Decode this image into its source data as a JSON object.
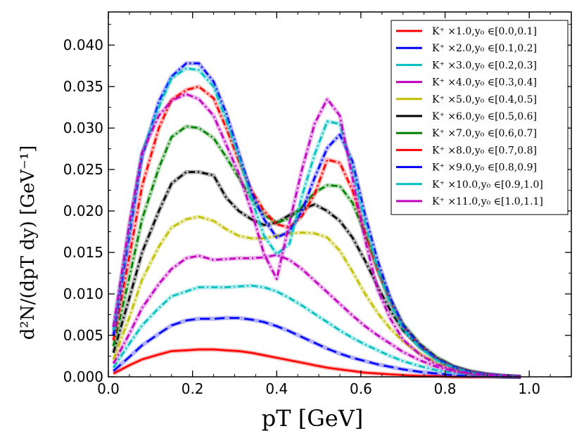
{
  "chart_data": {
    "type": "line",
    "title": "",
    "xlabel": "pT [GeV]",
    "ylabel": "d²N/(dpT dy) [GeV⁻¹]",
    "xlim": [
      0.0,
      1.1
    ],
    "ylim": [
      0.0,
      0.044
    ],
    "x_ticks": [
      "0.0",
      "0.2",
      "0.4",
      "0.6",
      "0.8",
      "1.0"
    ],
    "y_ticks": [
      "0.000",
      "0.005",
      "0.010",
      "0.015",
      "0.020",
      "0.025",
      "0.030",
      "0.035",
      "0.040"
    ],
    "legend_position": "top-right",
    "x": [
      0.012,
      0.05,
      0.08,
      0.12,
      0.15,
      0.185,
      0.215,
      0.25,
      0.28,
      0.31,
      0.34,
      0.37,
      0.4,
      0.43,
      0.46,
      0.49,
      0.52,
      0.55,
      0.58,
      0.61,
      0.64,
      0.67,
      0.7,
      0.74,
      0.78,
      0.82,
      0.86,
      0.9,
      0.94,
      0.98
    ],
    "series": [
      {
        "name": "K⁺ ×1.0,y₀ ∈[0.0,0.1]",
        "color": "#ff0000",
        "dash": "solid",
        "values": [
          0.0004,
          0.0014,
          0.0021,
          0.0027,
          0.0031,
          0.0032,
          0.0033,
          0.0033,
          0.0032,
          0.0031,
          0.0029,
          0.0026,
          0.0023,
          0.002,
          0.0017,
          0.0014,
          0.0011,
          0.0009,
          0.0007,
          0.0005,
          0.0004,
          0.0003,
          0.0002,
          0.0001,
          0.0001,
          0.0,
          0.0,
          0.0,
          0.0,
          0.0
        ]
      },
      {
        "name": "K⁺ ×2.0,y₀ ∈[0.1,0.2]",
        "color": "#0000ff",
        "dash": "dash",
        "values": [
          0.0007,
          0.0024,
          0.0038,
          0.0052,
          0.0062,
          0.0068,
          0.007,
          0.007,
          0.0071,
          0.0071,
          0.0069,
          0.0066,
          0.0061,
          0.0055,
          0.0048,
          0.0041,
          0.0034,
          0.0028,
          0.0023,
          0.0019,
          0.0015,
          0.0012,
          0.0009,
          0.0006,
          0.0004,
          0.0002,
          0.0001,
          0.0001,
          0.0,
          0.0
        ]
      },
      {
        "name": "K⁺ ×3.0,y₀ ∈[0.2,0.3]",
        "color": "#00bfbf",
        "dash": "dashdot",
        "values": [
          0.0011,
          0.004,
          0.0062,
          0.0083,
          0.0097,
          0.0103,
          0.0108,
          0.0108,
          0.0108,
          0.0109,
          0.011,
          0.0108,
          0.0103,
          0.0095,
          0.0086,
          0.0076,
          0.0066,
          0.0056,
          0.0047,
          0.0039,
          0.0032,
          0.0025,
          0.0019,
          0.0013,
          0.0008,
          0.0005,
          0.0003,
          0.0001,
          0.0,
          0.0
        ]
      },
      {
        "name": "K⁺ ×4.0,y₀ ∈[0.3,0.4]",
        "color": "#bf00bf",
        "dash": "dashdot",
        "values": [
          0.0016,
          0.0052,
          0.0083,
          0.0112,
          0.013,
          0.0143,
          0.0146,
          0.0141,
          0.0142,
          0.0143,
          0.0143,
          0.0144,
          0.0147,
          0.0141,
          0.013,
          0.0116,
          0.0102,
          0.0088,
          0.0074,
          0.0061,
          0.005,
          0.004,
          0.003,
          0.002,
          0.0012,
          0.0007,
          0.0004,
          0.0002,
          0.0001,
          0.0
        ]
      },
      {
        "name": "K⁺ ×5.0,y₀ ∈[0.4,0.5]",
        "color": "#bfbf00",
        "dash": "dashdot",
        "values": [
          0.0021,
          0.0072,
          0.0117,
          0.0157,
          0.018,
          0.019,
          0.0193,
          0.0188,
          0.0178,
          0.017,
          0.0167,
          0.0167,
          0.017,
          0.0173,
          0.0174,
          0.0173,
          0.0168,
          0.0152,
          0.0127,
          0.01,
          0.0077,
          0.0058,
          0.0043,
          0.0028,
          0.0017,
          0.001,
          0.0005,
          0.0002,
          0.0001,
          0.0
        ]
      },
      {
        "name": "K⁺ ×6.0,y₀ ∈[0.5,0.6]",
        "color": "#000000",
        "dash": "dashdot",
        "values": [
          0.0029,
          0.0095,
          0.015,
          0.02,
          0.0233,
          0.0247,
          0.0247,
          0.0243,
          0.0216,
          0.02,
          0.019,
          0.0183,
          0.0186,
          0.0195,
          0.0202,
          0.0208,
          0.02,
          0.0188,
          0.0168,
          0.014,
          0.0109,
          0.008,
          0.0056,
          0.0036,
          0.0022,
          0.0012,
          0.0006,
          0.0003,
          0.0001,
          0.0
        ]
      },
      {
        "name": "K⁺ ×7.0,y₀ ∈[0.6,0.7]",
        "color": "#008000",
        "dash": "dashdot",
        "values": [
          0.0037,
          0.012,
          0.019,
          0.0252,
          0.0289,
          0.0302,
          0.03,
          0.0288,
          0.0265,
          0.024,
          0.0215,
          0.0195,
          0.0186,
          0.0191,
          0.0205,
          0.0222,
          0.0231,
          0.023,
          0.021,
          0.0172,
          0.013,
          0.0093,
          0.0064,
          0.004,
          0.0024,
          0.0013,
          0.0007,
          0.0003,
          0.0001,
          0.0
        ]
      },
      {
        "name": "K⁺ ×8.0,y₀ ∈[0.7,0.8]",
        "color": "#ff0000",
        "dash": "dashdot",
        "values": [
          0.0044,
          0.0145,
          0.023,
          0.03,
          0.0334,
          0.0346,
          0.035,
          0.0336,
          0.03,
          0.026,
          0.0225,
          0.02,
          0.0184,
          0.018,
          0.0194,
          0.022,
          0.0262,
          0.0258,
          0.0225,
          0.0175,
          0.0128,
          0.009,
          0.0061,
          0.0038,
          0.0022,
          0.0012,
          0.0006,
          0.0003,
          0.0001,
          0.0
        ]
      },
      {
        "name": "K⁺ ×9.0,y₀ ∈[0.8,0.9]",
        "color": "#0000ff",
        "dash": "dashdot",
        "values": [
          0.005,
          0.017,
          0.0265,
          0.0332,
          0.0362,
          0.0378,
          0.0378,
          0.0356,
          0.0318,
          0.027,
          0.0222,
          0.019,
          0.0168,
          0.0175,
          0.02,
          0.024,
          0.0276,
          0.0292,
          0.026,
          0.0195,
          0.014,
          0.0095,
          0.0062,
          0.0038,
          0.0022,
          0.0012,
          0.0006,
          0.0003,
          0.0001,
          0.0
        ]
      },
      {
        "name": "K⁺ ×10.0,y₀ ∈[0.9,1.0]",
        "color": "#00bfbf",
        "dash": "dashdot",
        "values": [
          0.0056,
          0.018,
          0.027,
          0.0325,
          0.036,
          0.0372,
          0.037,
          0.035,
          0.031,
          0.0265,
          0.0215,
          0.017,
          0.0148,
          0.016,
          0.0218,
          0.0268,
          0.0308,
          0.0305,
          0.025,
          0.0185,
          0.013,
          0.0088,
          0.0058,
          0.0035,
          0.002,
          0.0011,
          0.0005,
          0.0002,
          0.0001,
          0.0
        ]
      },
      {
        "name": "K⁺ ×11.0,y₀ ∈[1.0,1.1]",
        "color": "#bf00bf",
        "dash": "dashdot",
        "values": [
          0.006,
          0.0185,
          0.027,
          0.0315,
          0.0333,
          0.0341,
          0.0335,
          0.0315,
          0.028,
          0.0245,
          0.02,
          0.0148,
          0.0118,
          0.0185,
          0.025,
          0.0305,
          0.0335,
          0.0315,
          0.024,
          0.0165,
          0.0105,
          0.007,
          0.0045,
          0.0027,
          0.0015,
          0.0008,
          0.0004,
          0.0002,
          0.0001,
          0.0
        ]
      }
    ]
  }
}
